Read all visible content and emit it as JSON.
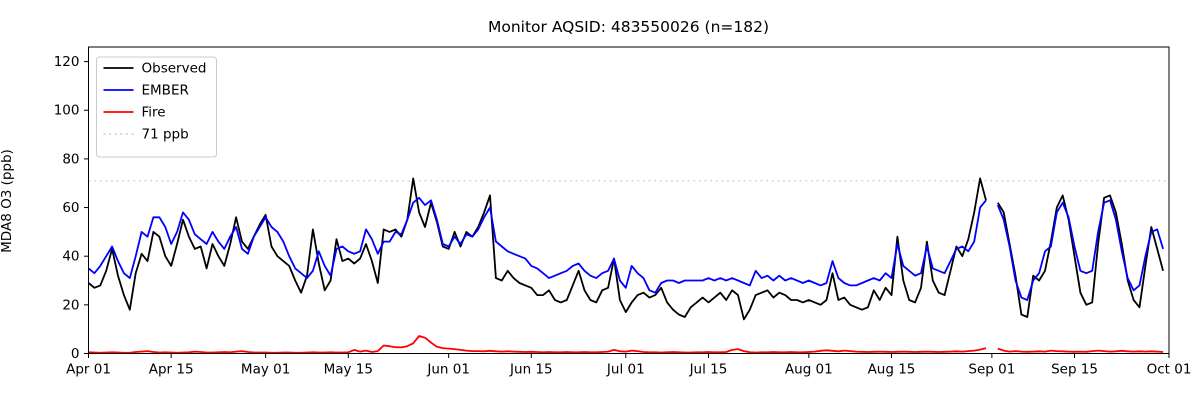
{
  "figure": {
    "title": "Monitor AQSID: 483550026 (n=182)",
    "ylabel": "MDA8 O3 (ppb)"
  },
  "legend": {
    "position": "upper-left",
    "items": [
      {
        "label": "Observed",
        "color": "#000000",
        "style": "solid"
      },
      {
        "label": "EMBER",
        "color": "#0000ff",
        "style": "solid"
      },
      {
        "label": "Fire",
        "color": "#ff0000",
        "style": "solid"
      },
      {
        "label": "71 ppb",
        "color": "#d3d3d3",
        "style": "dotted"
      }
    ]
  },
  "chart_data": {
    "type": "line",
    "title": "Monitor AQSID: 483550026 (n=182)",
    "xlabel": "",
    "ylabel": "MDA8 O3 (ppb)",
    "ylim": [
      0,
      126
    ],
    "y_ticks": [
      0,
      20,
      40,
      60,
      80,
      100,
      120
    ],
    "grid": false,
    "legend_position": "upper-left",
    "total_days": 183,
    "x_ticks": [
      {
        "label": "Apr 01",
        "day": 0
      },
      {
        "label": "Apr 15",
        "day": 14
      },
      {
        "label": "May 01",
        "day": 30
      },
      {
        "label": "May 15",
        "day": 44
      },
      {
        "label": "Jun 01",
        "day": 61
      },
      {
        "label": "Jun 15",
        "day": 75
      },
      {
        "label": "Jul 01",
        "day": 91
      },
      {
        "label": "Jul 15",
        "day": 105
      },
      {
        "label": "Aug 01",
        "day": 122
      },
      {
        "label": "Aug 15",
        "day": 136
      },
      {
        "label": "Sep 01",
        "day": 153
      },
      {
        "label": "Sep 15",
        "day": 167
      },
      {
        "label": "Oct 01",
        "day": 183
      }
    ],
    "threshold": {
      "value": 71,
      "label": "71 ppb",
      "color": "#d3d3d3",
      "style": "dotted"
    },
    "series": [
      {
        "name": "Observed",
        "color": "#000000",
        "values": [
          29,
          27,
          28,
          34,
          43,
          32,
          24,
          18,
          33,
          41,
          38,
          50,
          48,
          40,
          36,
          45,
          55,
          48,
          43,
          44,
          35,
          45,
          40,
          36,
          45,
          56,
          46,
          43,
          48,
          53,
          57,
          44,
          40,
          38,
          36,
          30,
          25,
          32,
          51,
          37,
          26,
          30,
          47,
          38,
          39,
          37,
          39,
          45,
          38,
          29,
          51,
          50,
          51,
          48,
          55,
          72,
          58,
          52,
          62,
          54,
          44,
          43,
          50,
          44,
          50,
          48,
          52,
          58,
          65,
          31,
          30,
          34,
          31,
          29,
          28,
          27,
          24,
          24,
          26,
          22,
          21,
          22,
          28,
          34,
          26,
          22,
          21,
          26,
          27,
          39,
          22,
          17,
          21,
          24,
          25,
          23,
          24,
          27,
          21,
          18,
          16,
          15,
          19,
          21,
          23,
          21,
          23,
          25,
          22,
          26,
          24,
          14,
          18,
          24,
          25,
          26,
          23,
          25,
          24,
          22,
          22,
          21,
          22,
          21,
          20,
          22,
          33,
          22,
          23,
          20,
          19,
          18,
          19,
          26,
          22,
          27,
          24,
          48,
          30,
          22,
          21,
          27,
          46,
          30,
          25,
          24,
          34,
          44,
          40,
          47,
          58,
          72,
          63,
          null,
          62,
          58,
          45,
          32,
          16,
          15,
          32,
          30,
          34,
          46,
          60,
          65,
          55,
          40,
          25,
          20,
          21,
          45,
          64,
          65,
          58,
          45,
          30,
          22,
          19,
          36,
          52,
          43,
          34
        ]
      },
      {
        "name": "EMBER",
        "color": "#0000ff",
        "values": [
          35,
          33,
          36,
          40,
          44,
          38,
          33,
          31,
          40,
          50,
          48,
          56,
          56,
          52,
          45,
          50,
          58,
          55,
          49,
          47,
          45,
          50,
          46,
          43,
          48,
          52,
          43,
          41,
          48,
          52,
          56,
          52,
          50,
          46,
          40,
          35,
          33,
          31,
          34,
          42,
          36,
          32,
          43,
          44,
          42,
          41,
          42,
          51,
          47,
          41,
          46,
          46,
          50,
          49,
          55,
          62,
          64,
          61,
          63,
          55,
          45,
          44,
          48,
          45,
          49,
          48,
          51,
          56,
          60,
          46,
          44,
          42,
          41,
          40,
          39,
          36,
          35,
          33,
          31,
          32,
          33,
          34,
          36,
          37,
          34,
          32,
          31,
          33,
          34,
          39,
          30,
          27,
          36,
          33,
          31,
          26,
          25,
          29,
          30,
          30,
          29,
          30,
          30,
          30,
          30,
          31,
          30,
          31,
          30,
          31,
          30,
          29,
          28,
          34,
          31,
          32,
          30,
          32,
          30,
          31,
          30,
          29,
          30,
          29,
          28,
          29,
          38,
          31,
          29,
          28,
          28,
          29,
          30,
          31,
          30,
          33,
          31,
          45,
          36,
          34,
          32,
          33,
          44,
          35,
          34,
          33,
          38,
          43,
          44,
          42,
          46,
          60,
          63,
          null,
          61,
          55,
          44,
          30,
          23,
          22,
          30,
          33,
          42,
          44,
          58,
          62,
          56,
          44,
          34,
          33,
          34,
          50,
          62,
          63,
          55,
          42,
          31,
          26,
          28,
          40,
          50,
          51,
          43
        ]
      },
      {
        "name": "Fire",
        "color": "#ff0000",
        "values": [
          0.5,
          0.4,
          0.3,
          0.4,
          0.5,
          0.4,
          0.3,
          0.3,
          0.6,
          0.8,
          1.0,
          0.6,
          0.4,
          0.5,
          0.4,
          0.3,
          0.4,
          0.5,
          0.8,
          0.6,
          0.4,
          0.4,
          0.5,
          0.6,
          0.5,
          0.8,
          1.0,
          0.6,
          0.4,
          0.4,
          0.4,
          0.3,
          0.3,
          0.4,
          0.4,
          0.3,
          0.3,
          0.4,
          0.5,
          0.4,
          0.4,
          0.5,
          0.4,
          0.4,
          0.5,
          1.5,
          0.8,
          1.2,
          0.6,
          1.0,
          3.3,
          3.0,
          2.6,
          2.5,
          3.0,
          4.2,
          7.2,
          6.5,
          4.5,
          2.8,
          2.2,
          2.0,
          1.8,
          1.5,
          1.2,
          1.0,
          1.0,
          0.9,
          1.1,
          0.9,
          0.8,
          0.9,
          0.8,
          0.7,
          0.6,
          0.7,
          0.6,
          0.5,
          0.6,
          0.5,
          0.5,
          0.6,
          0.5,
          0.5,
          0.6,
          0.5,
          0.5,
          0.6,
          0.8,
          1.5,
          0.9,
          0.8,
          1.2,
          1.0,
          0.6,
          0.5,
          0.5,
          0.4,
          0.5,
          0.6,
          0.5,
          0.4,
          0.4,
          0.5,
          0.5,
          0.6,
          0.5,
          0.5,
          0.6,
          1.5,
          1.8,
          1.0,
          0.5,
          0.4,
          0.5,
          0.5,
          0.6,
          0.5,
          0.5,
          0.6,
          0.5,
          0.5,
          0.6,
          0.8,
          1.1,
          1.3,
          1.1,
          0.9,
          1.2,
          1.0,
          0.8,
          0.7,
          0.6,
          0.7,
          0.8,
          0.7,
          0.6,
          0.7,
          0.8,
          0.7,
          0.6,
          0.7,
          0.8,
          0.7,
          0.6,
          0.7,
          0.8,
          0.9,
          0.8,
          1.0,
          1.2,
          1.6,
          2.2,
          null,
          2.0,
          1.2,
          0.8,
          1.0,
          0.8,
          0.7,
          0.8,
          0.9,
          0.8,
          1.2,
          1.0,
          0.9,
          0.8,
          0.7,
          0.8,
          0.7,
          1.0,
          1.2,
          1.0,
          0.8,
          0.9,
          1.1,
          0.9,
          0.8,
          0.9,
          0.8,
          0.9,
          0.8,
          0.6
        ]
      }
    ]
  }
}
